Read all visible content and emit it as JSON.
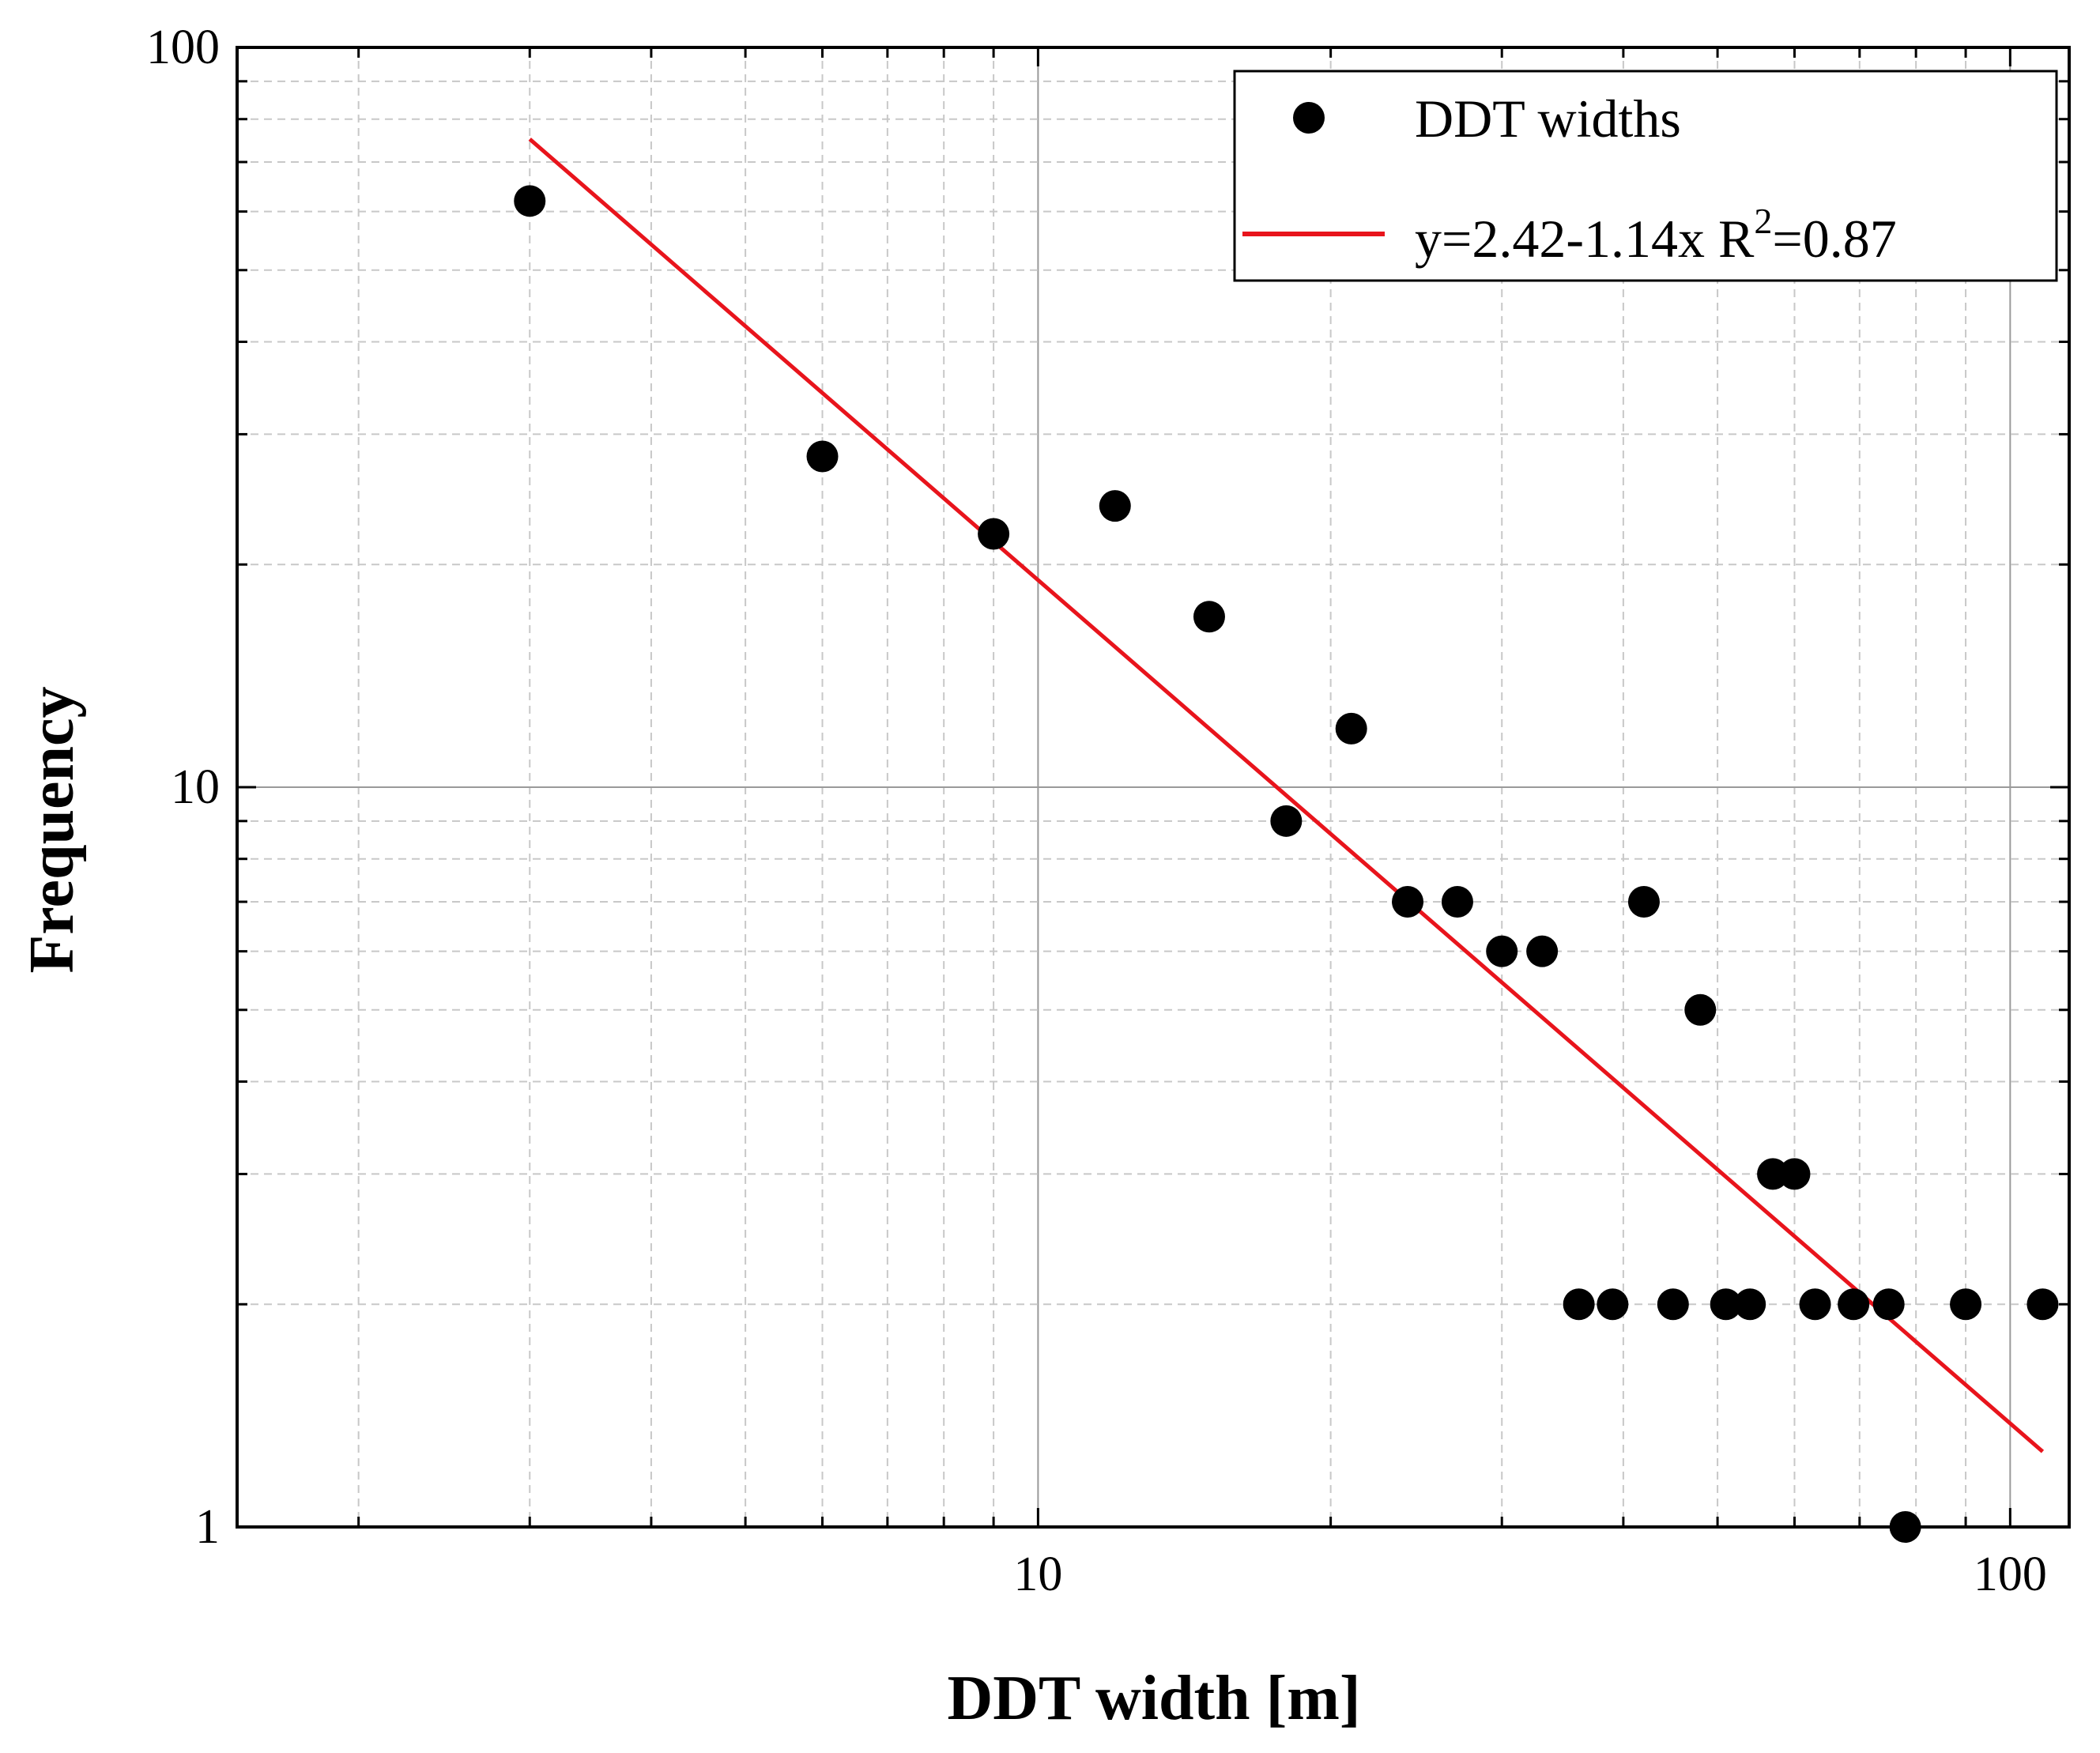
{
  "chart_data": {
    "type": "scatter",
    "xscale": "log",
    "yscale": "log",
    "xlim": [
      1.5,
      115
    ],
    "ylim": [
      1,
      100
    ],
    "xlabel": "DDT width [m]",
    "ylabel": "Frequency",
    "x_tick_labels": [
      "10",
      "100"
    ],
    "y_tick_labels": [
      "1",
      "10",
      "100"
    ],
    "grid": true,
    "legend_position": "top-right",
    "series": [
      {
        "name": "DDT widths",
        "kind": "scatter",
        "color": "#000000",
        "points": [
          {
            "x": 3,
            "y": 62
          },
          {
            "x": 6,
            "y": 28
          },
          {
            "x": 9,
            "y": 22
          },
          {
            "x": 12,
            "y": 24
          },
          {
            "x": 15,
            "y": 17
          },
          {
            "x": 18,
            "y": 9
          },
          {
            "x": 21,
            "y": 12
          },
          {
            "x": 24,
            "y": 7
          },
          {
            "x": 27,
            "y": 7
          },
          {
            "x": 30,
            "y": 6
          },
          {
            "x": 33,
            "y": 6
          },
          {
            "x": 36,
            "y": 2
          },
          {
            "x": 39,
            "y": 2
          },
          {
            "x": 42,
            "y": 7
          },
          {
            "x": 45,
            "y": 2
          },
          {
            "x": 48,
            "y": 5
          },
          {
            "x": 51,
            "y": 2
          },
          {
            "x": 54,
            "y": 2
          },
          {
            "x": 57,
            "y": 3
          },
          {
            "x": 60,
            "y": 3
          },
          {
            "x": 63,
            "y": 2
          },
          {
            "x": 69,
            "y": 2
          },
          {
            "x": 75,
            "y": 2
          },
          {
            "x": 78,
            "y": 1
          },
          {
            "x": 90,
            "y": 2
          },
          {
            "x": 108,
            "y": 2
          }
        ]
      },
      {
        "name": "y=2.42-1.14x R",
        "name_superscript": "2",
        "name_suffix": "=0.87",
        "kind": "line",
        "color": "#e8141c",
        "intercept": 2.42,
        "slope": -1.14,
        "x_range": [
          3,
          108
        ]
      }
    ]
  }
}
